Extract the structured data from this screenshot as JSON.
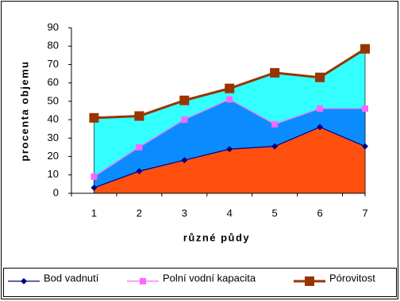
{
  "chart_data": {
    "type": "area",
    "y_label": "procenta objemu",
    "x_label": "různé půdy",
    "categories": [
      "1",
      "2",
      "3",
      "4",
      "5",
      "6",
      "7"
    ],
    "series": [
      {
        "name": "Bod vadnutí",
        "color": "#000080",
        "area_color": "#ff5010",
        "marker": "diamond",
        "values": [
          3,
          12,
          18,
          24,
          25.5,
          36,
          25.5
        ]
      },
      {
        "name": "Polní vodní kapacita",
        "color": "#ff66ff",
        "area_color": "#0a8cff",
        "marker": "square",
        "values": [
          9,
          25,
          40,
          51,
          37.5,
          46,
          46
        ]
      },
      {
        "name": "Pórovitost",
        "color": "#993300",
        "area_color": "#33ffff",
        "marker": "big-square",
        "values": [
          41,
          42,
          50.5,
          57,
          65.5,
          63,
          78.5
        ]
      }
    ],
    "ylim": [
      0,
      90
    ],
    "yticks": [
      0,
      10,
      20,
      30,
      40,
      50,
      60,
      70,
      80,
      90
    ],
    "grid": false,
    "legend": "bottom"
  }
}
